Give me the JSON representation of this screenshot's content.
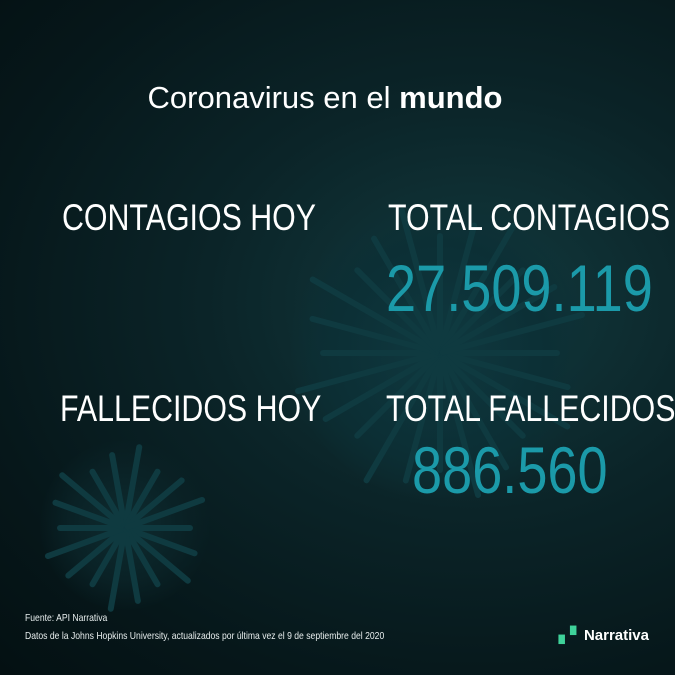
{
  "title": {
    "prefix": "Coronavirus en el",
    "bold": "mundo"
  },
  "stats": {
    "contagios_hoy": {
      "label": "CONTAGIOS HOY"
    },
    "total_contagios": {
      "label": "TOTAL CONTAGIOS",
      "value": "27.509.119"
    },
    "fallecidos_hoy": {
      "label": "FALLECIDOS HOY"
    },
    "total_fallecidos": {
      "label": "TOTAL FALLECIDOS",
      "value": "886.560"
    }
  },
  "footer": {
    "source": "Fuente: API Narrativa",
    "note": "Datos de la Johns Hopkins University, actualizados por última vez el 9 de septiembre del 2020",
    "logo_text": "Narrativa"
  },
  "colors": {
    "accent": "#1b9aa9",
    "background": "#0b2428",
    "logo_mark": "#3fd29a"
  }
}
